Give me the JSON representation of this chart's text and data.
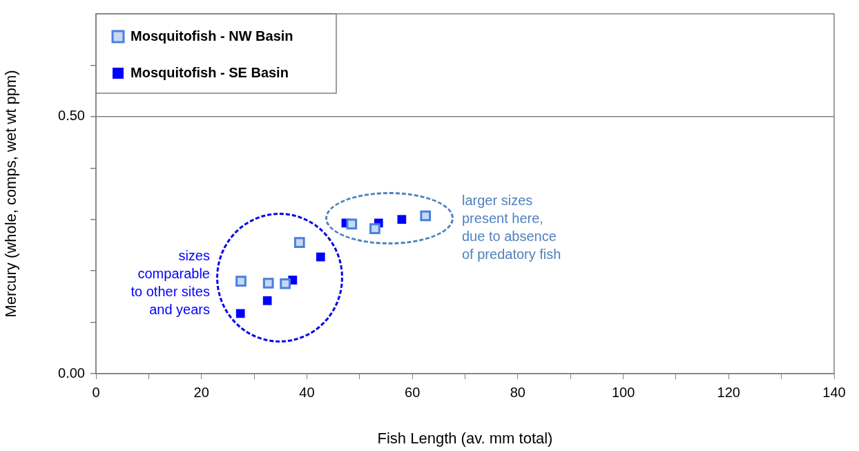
{
  "chart_data": {
    "type": "scatter",
    "xlabel": "Fish Length (av. mm total)",
    "ylabel": "Mercury (whole, comps, wet wt ppm)",
    "xlim": [
      0,
      140
    ],
    "xticks": [
      0,
      {
        "value": 10,
        "label": null
      },
      20,
      {
        "value": 30,
        "label": null
      },
      40,
      {
        "value": 50,
        "label": null
      },
      60,
      {
        "value": 70,
        "label": null
      },
      80,
      {
        "value": 90,
        "label": null
      },
      100,
      {
        "value": 110,
        "label": null
      },
      120,
      {
        "value": 130,
        "label": null
      },
      140
    ],
    "ylim": [
      0,
      0.7
    ],
    "yticks": [
      {
        "value": 0,
        "label": "0.00"
      },
      {
        "value": 0.1,
        "label": null
      },
      {
        "value": 0.2,
        "label": null
      },
      {
        "value": 0.3,
        "label": null
      },
      {
        "value": 0.4,
        "label": null
      },
      {
        "value": 0.5,
        "label": "0.50"
      },
      {
        "value": 0.6,
        "label": null
      }
    ],
    "grid": "y",
    "legend": "top left",
    "marker": "square",
    "series": [
      {
        "name": "Mosquitofish - NW Basin",
        "color": "#c6d9f1",
        "x": [
          27.5,
          32.7,
          35.9,
          38.6,
          48.5,
          52.9,
          62.5
        ],
        "values": [
          0.18,
          0.176,
          0.175,
          0.255,
          0.291,
          0.282,
          0.307
        ]
      },
      {
        "name": "Mosquitofish - SE Basin",
        "color": "#0000ff",
        "x": [
          27.4,
          32.5,
          37.3,
          42.6,
          47.4,
          53.6,
          58.0
        ],
        "values": [
          0.117,
          0.142,
          0.182,
          0.227,
          0.293,
          0.293,
          0.3
        ]
      }
    ],
    "annotations": [
      "sizes\ncomparable\nto other sites\nand years",
      "larger sizes\npresent here,\ndue to absence\nof predatory fish"
    ]
  }
}
